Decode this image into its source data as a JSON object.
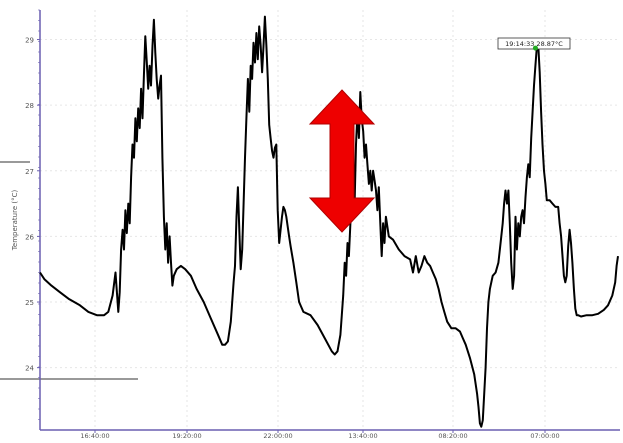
{
  "chart_data": {
    "type": "line",
    "ylabel": "Temperature (°C)",
    "ylim": [
      23.05,
      29.45
    ],
    "y_ticks": [
      24,
      25,
      26,
      27,
      28,
      29
    ],
    "y_tick_labels": [
      "24",
      "25",
      "26",
      "27",
      "28",
      "29"
    ],
    "x_tick_labels": [
      "16:40:00",
      "19:20:00",
      "22:00:00",
      "13:40:00",
      "08:20:00",
      "07:00:00"
    ],
    "grid": true,
    "annotation": {
      "text": "19:14:33 28.87°C"
    },
    "overlay": {
      "shape": "double-headed-arrow",
      "color": "#ee0000"
    },
    "series": [
      {
        "color": "#000000",
        "points": [
          [
            0,
            25.45
          ],
          [
            3,
            25.35
          ],
          [
            8,
            25.25
          ],
          [
            14,
            25.15
          ],
          [
            20,
            25.05
          ],
          [
            28,
            24.95
          ],
          [
            34,
            24.85
          ],
          [
            40,
            24.8
          ],
          [
            45,
            24.8
          ],
          [
            48,
            24.85
          ],
          [
            51,
            25.1
          ],
          [
            53,
            25.45
          ],
          [
            54,
            25.15
          ],
          [
            55,
            24.85
          ],
          [
            56,
            25.15
          ],
          [
            57,
            25.8
          ],
          [
            58,
            26.1
          ],
          [
            59,
            25.8
          ],
          [
            60,
            26.4
          ],
          [
            61,
            26.05
          ],
          [
            62,
            26.5
          ],
          [
            63,
            26.2
          ],
          [
            64,
            26.9
          ],
          [
            65,
            27.4
          ],
          [
            66,
            27.2
          ],
          [
            67,
            27.8
          ],
          [
            68,
            27.45
          ],
          [
            69,
            27.95
          ],
          [
            70,
            27.65
          ],
          [
            71,
            28.25
          ],
          [
            72,
            27.8
          ],
          [
            73,
            28.45
          ],
          [
            74,
            29.05
          ],
          [
            75,
            28.65
          ],
          [
            76,
            28.25
          ],
          [
            77,
            28.6
          ],
          [
            78,
            28.3
          ],
          [
            79,
            28.9
          ],
          [
            80,
            29.3
          ],
          [
            81,
            28.8
          ],
          [
            82,
            28.4
          ],
          [
            83,
            28.1
          ],
          [
            84,
            28.3
          ],
          [
            85,
            28.45
          ],
          [
            86,
            27.2
          ],
          [
            87,
            26.3
          ],
          [
            88,
            25.8
          ],
          [
            89,
            26.2
          ],
          [
            90,
            25.6
          ],
          [
            91,
            26.0
          ],
          [
            92,
            25.6
          ],
          [
            93,
            25.25
          ],
          [
            94,
            25.4
          ],
          [
            96,
            25.5
          ],
          [
            99,
            25.55
          ],
          [
            102,
            25.5
          ],
          [
            106,
            25.4
          ],
          [
            110,
            25.2
          ],
          [
            115,
            25.0
          ],
          [
            120,
            24.75
          ],
          [
            125,
            24.5
          ],
          [
            128,
            24.35
          ],
          [
            130,
            24.35
          ],
          [
            132,
            24.4
          ],
          [
            134,
            24.7
          ],
          [
            135,
            25.0
          ],
          [
            136,
            25.3
          ],
          [
            137,
            25.55
          ],
          [
            138,
            26.3
          ],
          [
            139,
            26.75
          ],
          [
            140,
            26.1
          ],
          [
            141,
            25.5
          ],
          [
            142,
            25.8
          ],
          [
            143,
            26.5
          ],
          [
            144,
            27.2
          ],
          [
            145,
            27.8
          ],
          [
            146,
            28.4
          ],
          [
            147,
            27.9
          ],
          [
            148,
            28.6
          ],
          [
            149,
            28.4
          ],
          [
            150,
            28.95
          ],
          [
            151,
            28.65
          ],
          [
            152,
            29.1
          ],
          [
            153,
            28.7
          ],
          [
            154,
            29.2
          ],
          [
            155,
            28.9
          ],
          [
            156,
            28.5
          ],
          [
            157,
            28.9
          ],
          [
            158,
            29.35
          ],
          [
            159,
            28.9
          ],
          [
            160,
            28.4
          ],
          [
            161,
            27.7
          ],
          [
            162,
            27.5
          ],
          [
            163,
            27.3
          ],
          [
            164,
            27.2
          ],
          [
            165,
            27.35
          ],
          [
            166,
            27.4
          ],
          [
            167,
            26.4
          ],
          [
            168,
            25.9
          ],
          [
            169,
            26.1
          ],
          [
            170,
            26.3
          ],
          [
            171,
            26.45
          ],
          [
            172,
            26.4
          ],
          [
            173,
            26.3
          ],
          [
            174,
            26.15
          ],
          [
            175,
            26.0
          ],
          [
            176,
            25.85
          ],
          [
            178,
            25.6
          ],
          [
            180,
            25.3
          ],
          [
            182,
            25.0
          ],
          [
            185,
            24.85
          ],
          [
            190,
            24.8
          ],
          [
            195,
            24.65
          ],
          [
            200,
            24.45
          ],
          [
            205,
            24.25
          ],
          [
            207,
            24.2
          ],
          [
            209,
            24.25
          ],
          [
            211,
            24.5
          ],
          [
            212,
            24.8
          ],
          [
            213,
            25.1
          ],
          [
            214,
            25.6
          ],
          [
            215,
            25.4
          ],
          [
            216,
            25.9
          ],
          [
            217,
            25.7
          ],
          [
            218,
            26.2
          ],
          [
            219,
            26.8
          ],
          [
            220,
            27.1
          ],
          [
            221,
            26.5
          ],
          [
            222,
            27.4
          ],
          [
            223,
            27.9
          ],
          [
            224,
            27.5
          ],
          [
            225,
            28.2
          ],
          [
            226,
            27.8
          ],
          [
            227,
            27.6
          ],
          [
            228,
            27.2
          ],
          [
            229,
            27.4
          ],
          [
            230,
            27.1
          ],
          [
            231,
            26.8
          ],
          [
            232,
            27.0
          ],
          [
            233,
            26.7
          ],
          [
            234,
            27.0
          ],
          [
            235,
            26.85
          ],
          [
            236,
            26.7
          ],
          [
            237,
            26.4
          ],
          [
            238,
            26.75
          ],
          [
            239,
            26.2
          ],
          [
            240,
            25.7
          ],
          [
            241,
            26.2
          ],
          [
            242,
            25.9
          ],
          [
            243,
            26.3
          ],
          [
            245,
            26.0
          ],
          [
            248,
            25.95
          ],
          [
            252,
            25.8
          ],
          [
            256,
            25.7
          ],
          [
            260,
            25.65
          ],
          [
            262,
            25.45
          ],
          [
            264,
            25.7
          ],
          [
            266,
            25.45
          ],
          [
            268,
            25.55
          ],
          [
            270,
            25.7
          ],
          [
            272,
            25.6
          ],
          [
            274,
            25.55
          ],
          [
            276,
            25.45
          ],
          [
            278,
            25.35
          ],
          [
            280,
            25.2
          ],
          [
            282,
            25.0
          ],
          [
            284,
            24.85
          ],
          [
            286,
            24.7
          ],
          [
            289,
            24.6
          ],
          [
            292,
            24.6
          ],
          [
            295,
            24.55
          ],
          [
            297,
            24.45
          ],
          [
            299,
            24.35
          ],
          [
            302,
            24.15
          ],
          [
            305,
            23.9
          ],
          [
            307,
            23.6
          ],
          [
            308,
            23.4
          ],
          [
            309,
            23.15
          ],
          [
            310,
            23.1
          ],
          [
            311,
            23.2
          ],
          [
            312,
            23.6
          ],
          [
            313,
            24.0
          ],
          [
            314,
            24.6
          ],
          [
            315,
            25.0
          ],
          [
            316,
            25.2
          ],
          [
            318,
            25.4
          ],
          [
            320,
            25.45
          ],
          [
            322,
            25.6
          ],
          [
            324,
            26.0
          ],
          [
            325,
            26.2
          ],
          [
            326,
            26.5
          ],
          [
            327,
            26.7
          ],
          [
            328,
            26.5
          ],
          [
            329,
            26.7
          ],
          [
            330,
            26.2
          ],
          [
            331,
            25.6
          ],
          [
            332,
            25.2
          ],
          [
            333,
            25.4
          ],
          [
            334,
            26.3
          ],
          [
            335,
            25.8
          ],
          [
            336,
            26.2
          ],
          [
            337,
            26.0
          ],
          [
            338,
            26.3
          ],
          [
            339,
            26.4
          ],
          [
            340,
            26.2
          ],
          [
            341,
            26.6
          ],
          [
            342,
            26.9
          ],
          [
            343,
            27.1
          ],
          [
            344,
            26.9
          ],
          [
            345,
            27.5
          ],
          [
            346,
            27.9
          ],
          [
            347,
            28.3
          ],
          [
            348,
            28.6
          ],
          [
            349,
            28.9
          ],
          [
            350,
            28.9
          ],
          [
            351,
            28.5
          ],
          [
            352,
            27.9
          ],
          [
            353,
            27.4
          ],
          [
            354,
            27.0
          ],
          [
            355,
            26.8
          ],
          [
            356,
            26.55
          ],
          [
            358,
            26.55
          ],
          [
            360,
            26.5
          ],
          [
            362,
            26.45
          ],
          [
            364,
            26.45
          ],
          [
            365,
            26.2
          ],
          [
            366,
            26.0
          ],
          [
            367,
            25.7
          ],
          [
            368,
            25.4
          ],
          [
            369,
            25.3
          ],
          [
            370,
            25.4
          ],
          [
            371,
            25.85
          ],
          [
            372,
            26.1
          ],
          [
            373,
            25.9
          ],
          [
            374,
            25.6
          ],
          [
            375,
            25.2
          ],
          [
            376,
            24.9
          ],
          [
            377,
            24.8
          ],
          [
            378,
            24.8
          ],
          [
            380,
            24.78
          ],
          [
            384,
            24.8
          ],
          [
            388,
            24.8
          ],
          [
            392,
            24.82
          ],
          [
            396,
            24.88
          ],
          [
            399,
            24.95
          ],
          [
            402,
            25.1
          ],
          [
            404,
            25.3
          ],
          [
            405,
            25.55
          ],
          [
            406,
            25.7
          ]
        ]
      }
    ],
    "highlight_point": {
      "x": 348,
      "y": 28.87,
      "color": "#22aa22"
    }
  }
}
